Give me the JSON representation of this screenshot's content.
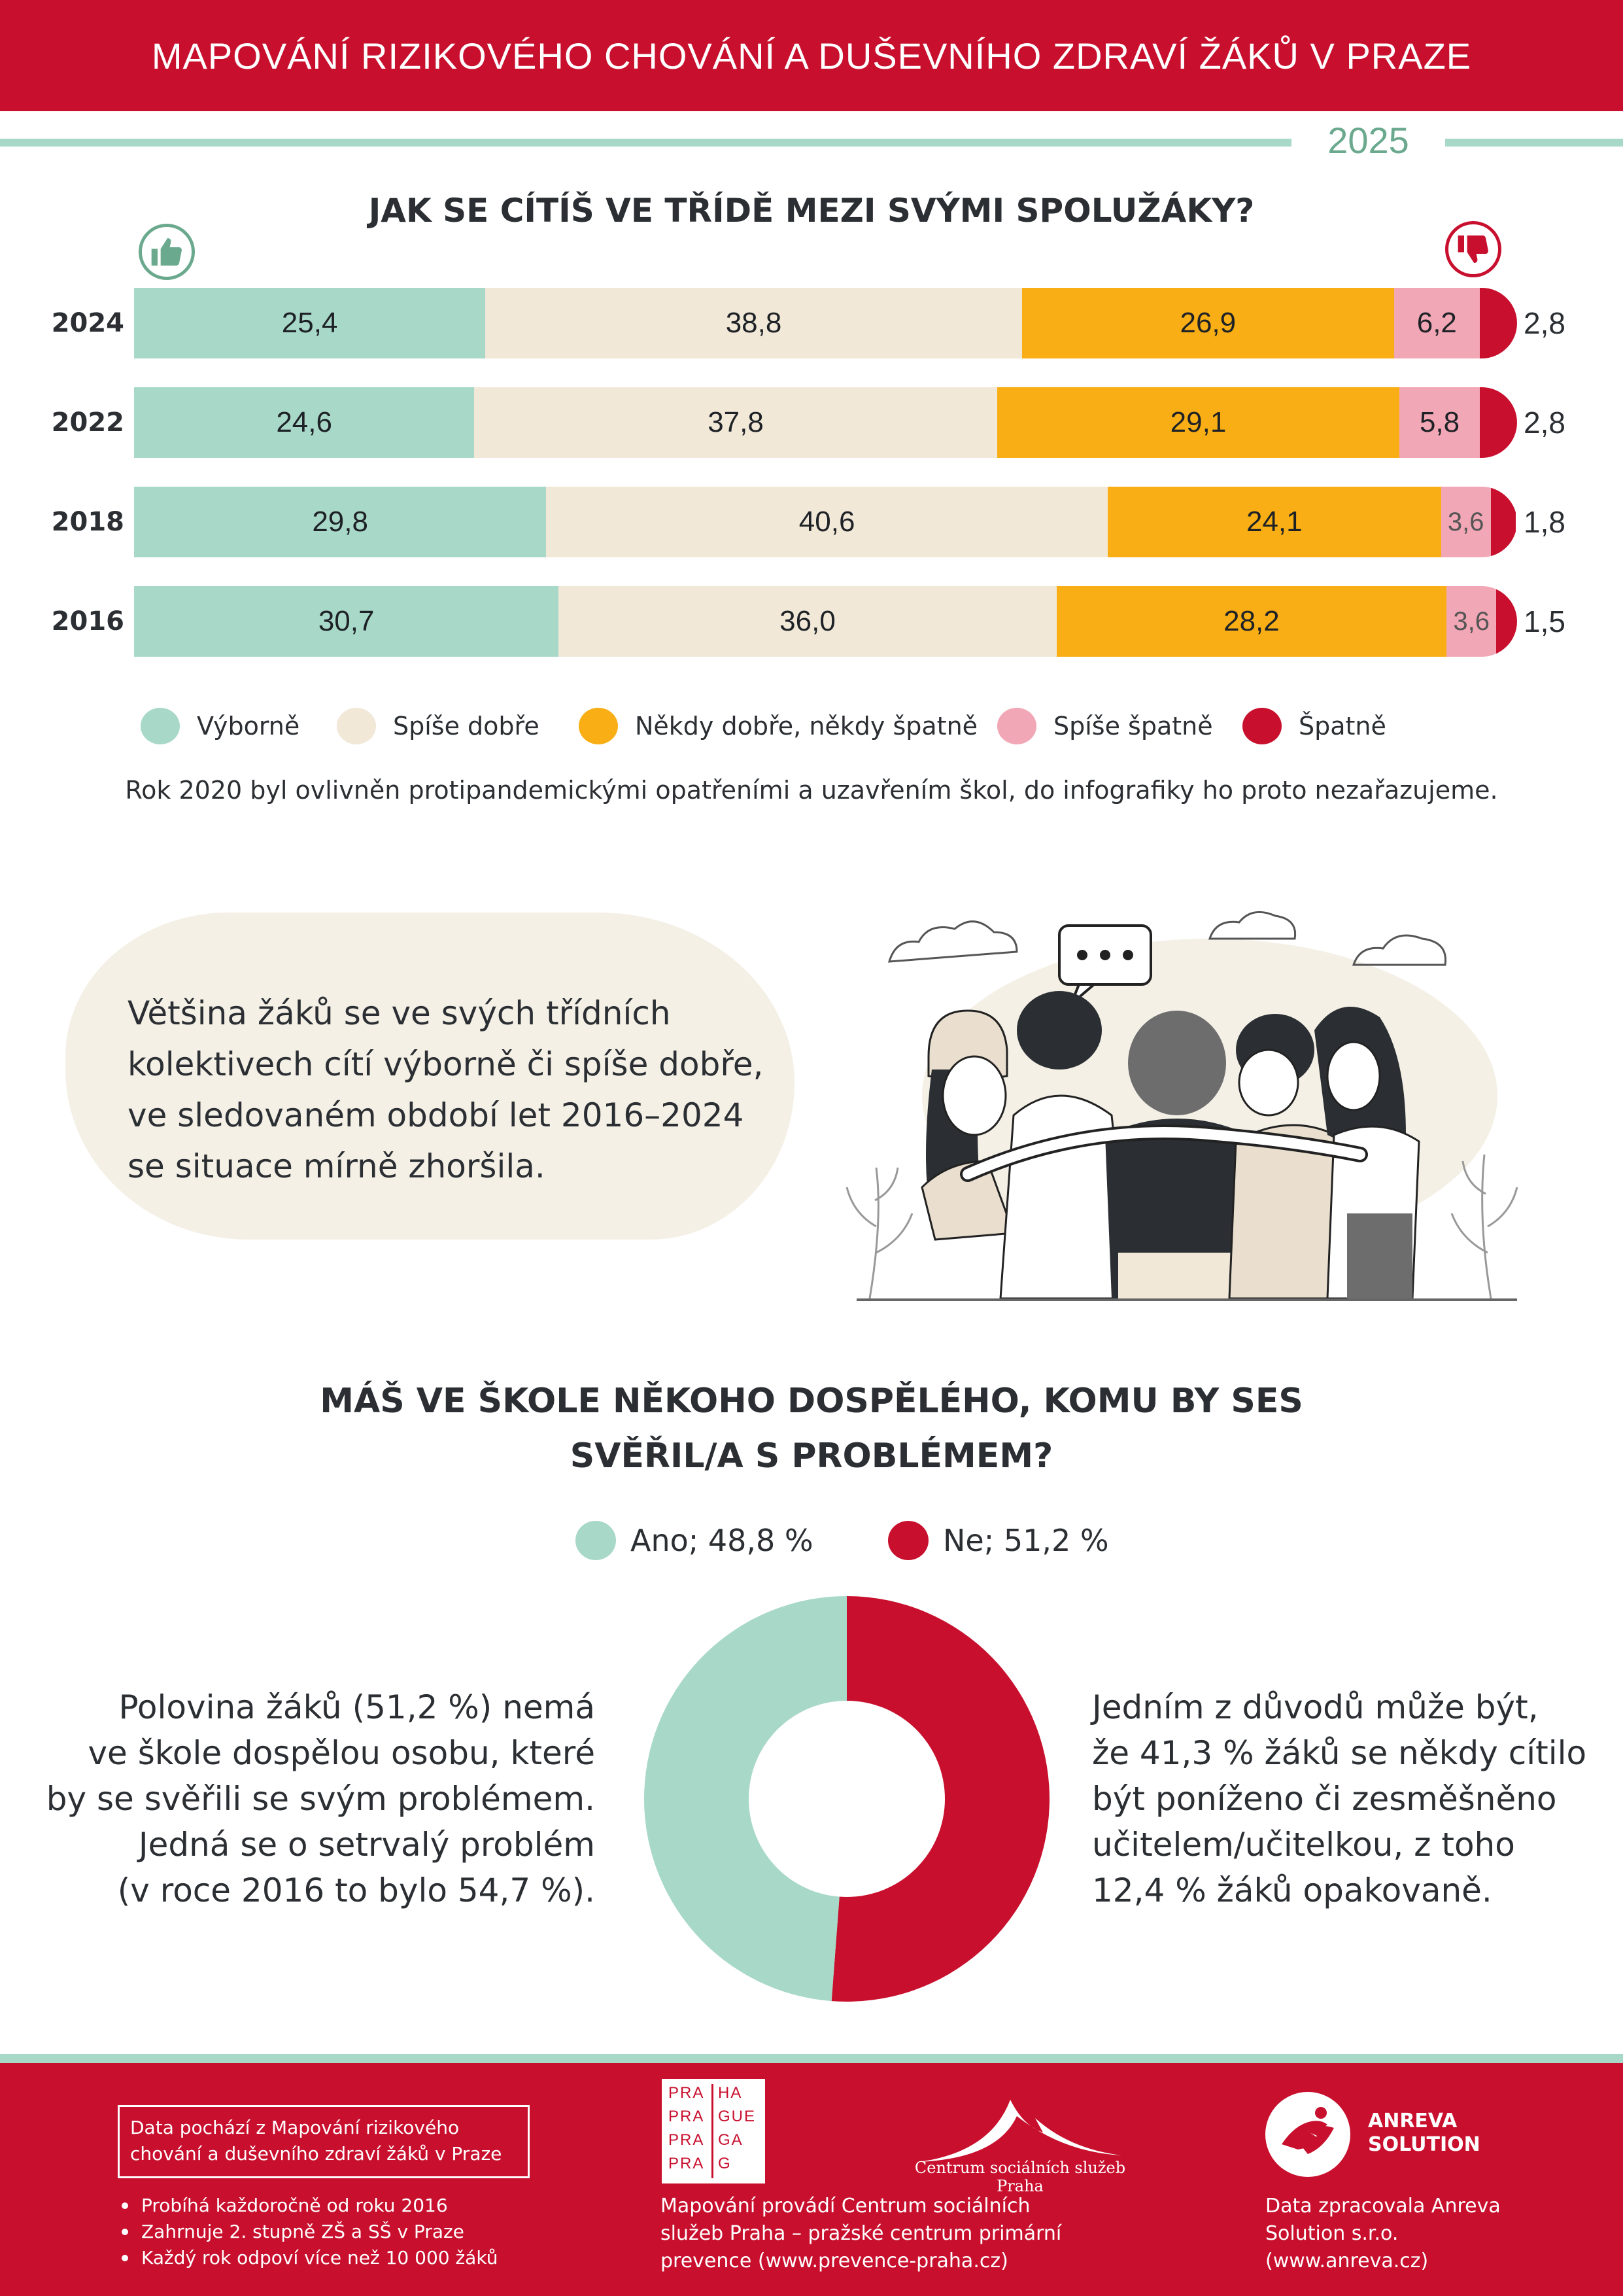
{
  "header": {
    "title": "MAPOVÁNÍ RIZIKOVÉHO CHOVÁNÍ A DUŠEVNÍHO ZDRAVÍ ŽÁKŮ V PRAZE",
    "year": "2025"
  },
  "colors": {
    "brand_red": "#c8102e",
    "mint": "#a8d8c8",
    "beige": "#f1e8d8",
    "orange": "#f8ae14",
    "pink": "#f1a7b5",
    "crimson": "#c8102e"
  },
  "section1": {
    "title": "JAK SE CÍTÍŠ VE TŘÍDĚ MEZI SVÝMI SPOLUŽÁKY?",
    "icons": {
      "left": "thumbs-up-icon",
      "right": "thumbs-down-icon"
    },
    "note": "Rok 2020 byl ovlivněn protipandemickými opatřeními a uzavřením škol, do infografiky ho proto nezařazujeme."
  },
  "chart_data": [
    {
      "type": "bar",
      "orientation": "horizontal-stacked-100",
      "title": "JAK SE CÍTÍŠ VE TŘÍDĚ MEZI SVÝMI SPOLUŽÁKY?",
      "categories": [
        "2024",
        "2022",
        "2018",
        "2016"
      ],
      "series": [
        {
          "name": "Výborně",
          "color": "#a8d8c8",
          "values": [
            25.4,
            24.6,
            29.8,
            30.7
          ],
          "labels": [
            "25,4",
            "24,6",
            "29,8",
            "30,7"
          ]
        },
        {
          "name": "Spíše dobře",
          "color": "#f1e8d8",
          "values": [
            38.8,
            37.8,
            40.6,
            36.0
          ],
          "labels": [
            "38,8",
            "37,8",
            "40,6",
            "36,0"
          ]
        },
        {
          "name": "Někdy dobře, někdy špatně",
          "color": "#f8ae14",
          "values": [
            26.9,
            29.1,
            24.1,
            28.2
          ],
          "labels": [
            "26,9",
            "29,1",
            "24,1",
            "28,2"
          ]
        },
        {
          "name": "Spíše špatně",
          "color": "#f1a7b5",
          "values": [
            6.2,
            5.8,
            3.6,
            3.6
          ],
          "labels": [
            "6,2",
            "5,8",
            "3,6",
            "3,6"
          ]
        },
        {
          "name": "Špatně",
          "color": "#c8102e",
          "values": [
            2.8,
            2.8,
            1.8,
            1.5
          ],
          "labels": [
            "2,8",
            "2,8",
            "1,8",
            "1,5"
          ]
        }
      ],
      "legend": "bottom"
    },
    {
      "type": "pie",
      "variant": "donut",
      "title": "MÁŠ VE ŠKOLE NĚKOHO DOSPĚLÉHO, KOMU BY SES SVĚŘIL/A S PROBLÉMEM?",
      "slices": [
        {
          "name": "Ano",
          "value": 48.8,
          "label": "Ano; 48,8 %",
          "color": "#a8d8c8"
        },
        {
          "name": "Ne",
          "value": 51.2,
          "label": "Ne; 51,2 %",
          "color": "#c8102e"
        }
      ],
      "legend": "top"
    }
  ],
  "callout": {
    "lines": [
      "Většina žáků se ve svých třídních",
      "kolektivech cítí výborně či spíše dobře,",
      "ve sledovaném období let 2016–2024",
      "se situace mírně zhoršila."
    ]
  },
  "section2": {
    "title_lines": [
      "MÁŠ VE ŠKOLE NĚKOHO DOSPĚLÉHO, KOMU BY SES",
      "SVĚŘIL/A S PROBLÉMEM?"
    ],
    "left_lines": [
      "Polovina žáků (51,2 %) nemá",
      "ve škole dospělou osobu, které",
      "by se svěřili se svým problémem.",
      "Jedná se o setrvalý problém",
      "(v roce 2016 to bylo 54,7 %)."
    ],
    "right_lines": [
      "Jedním z důvodů může být,",
      "že 41,3 % žáků se někdy cítilo",
      "být poníženo či zesměšněno",
      "učitelem/učitelkou, z toho",
      "12,4 % žáků opakovaně."
    ]
  },
  "footer": {
    "box_lines": [
      "Data pochází z Mapování rizikového",
      "chování a duševního zdraví žáků v Praze"
    ],
    "bullets": [
      "Probíhá každoročně od roku 2016",
      "Zahrnuje 2. stupně ZŠ a SŠ v Praze",
      "Každý rok odpoví více než 10 000 žáků"
    ],
    "praha_logo": [
      [
        "PRA",
        "HA"
      ],
      [
        "PRA",
        "GUE"
      ],
      [
        "PRA",
        "GA"
      ],
      [
        "PRA",
        "G"
      ]
    ],
    "csz_logo_text": "Centrum sociálních služeb Praha",
    "middle_lines": [
      "Mapování provádí Centrum sociálních",
      "služeb Praha – pražské centrum primární",
      "prevence (www.prevence-praha.cz)"
    ],
    "anreva_name_lines": [
      "ANREVA",
      "SOLUTION"
    ],
    "right_lines": [
      "Data zpracovala Anreva",
      "Solution s.r.o.",
      "(www.anreva.cz)"
    ]
  }
}
